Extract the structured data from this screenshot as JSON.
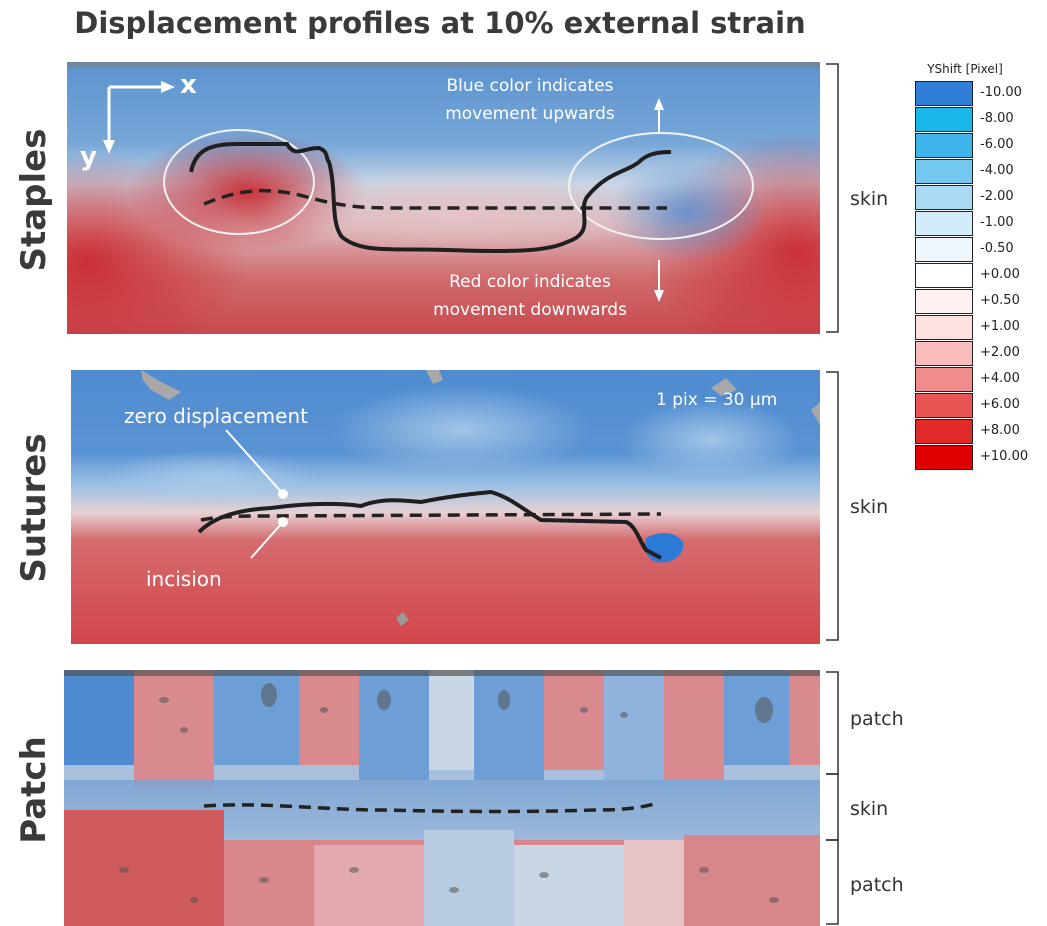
{
  "title": "Displacement profiles at 10% external strain",
  "rows": {
    "staples": "Staples",
    "sutures": "Sutures",
    "patch": "Patch"
  },
  "axes": {
    "x": "x",
    "y": "y"
  },
  "staples_annotations": {
    "blue_note_line1": "Blue color indicates",
    "blue_note_line2": "movement upwards",
    "red_note_line1": "Red color indicates",
    "red_note_line2": "movement downwards"
  },
  "sutures_annotations": {
    "zero_displacement": "zero displacement",
    "incision": "incision",
    "scale": "1 pix = 30 µm"
  },
  "side_labels": {
    "staples_skin": "skin",
    "sutures_skin": "skin",
    "patch_top": "patch",
    "patch_mid": "skin",
    "patch_bottom": "patch"
  },
  "legend": {
    "title": "YShift [Pixel]",
    "entries": [
      {
        "label": "-10.00",
        "color": "#2f7fd8"
      },
      {
        "label": "-8.00",
        "color": "#1ab6ec"
      },
      {
        "label": "-6.00",
        "color": "#3fb4ea"
      },
      {
        "label": "-4.00",
        "color": "#72c8ee"
      },
      {
        "label": "-2.00",
        "color": "#a9dcf4"
      },
      {
        "label": "-1.00",
        "color": "#d2ecf9"
      },
      {
        "label": "-0.50",
        "color": "#ecf6fc"
      },
      {
        "label": "+0.00",
        "color": "#ffffff"
      },
      {
        "label": "+0.50",
        "color": "#fff1f1"
      },
      {
        "label": "+1.00",
        "color": "#fde0e0"
      },
      {
        "label": "+2.00",
        "color": "#f8bcbc"
      },
      {
        "label": "+4.00",
        "color": "#f08c8c"
      },
      {
        "label": "+6.00",
        "color": "#e85555"
      },
      {
        "label": "+8.00",
        "color": "#e22a2a"
      },
      {
        "label": "+10.00",
        "color": "#e00000"
      }
    ]
  }
}
